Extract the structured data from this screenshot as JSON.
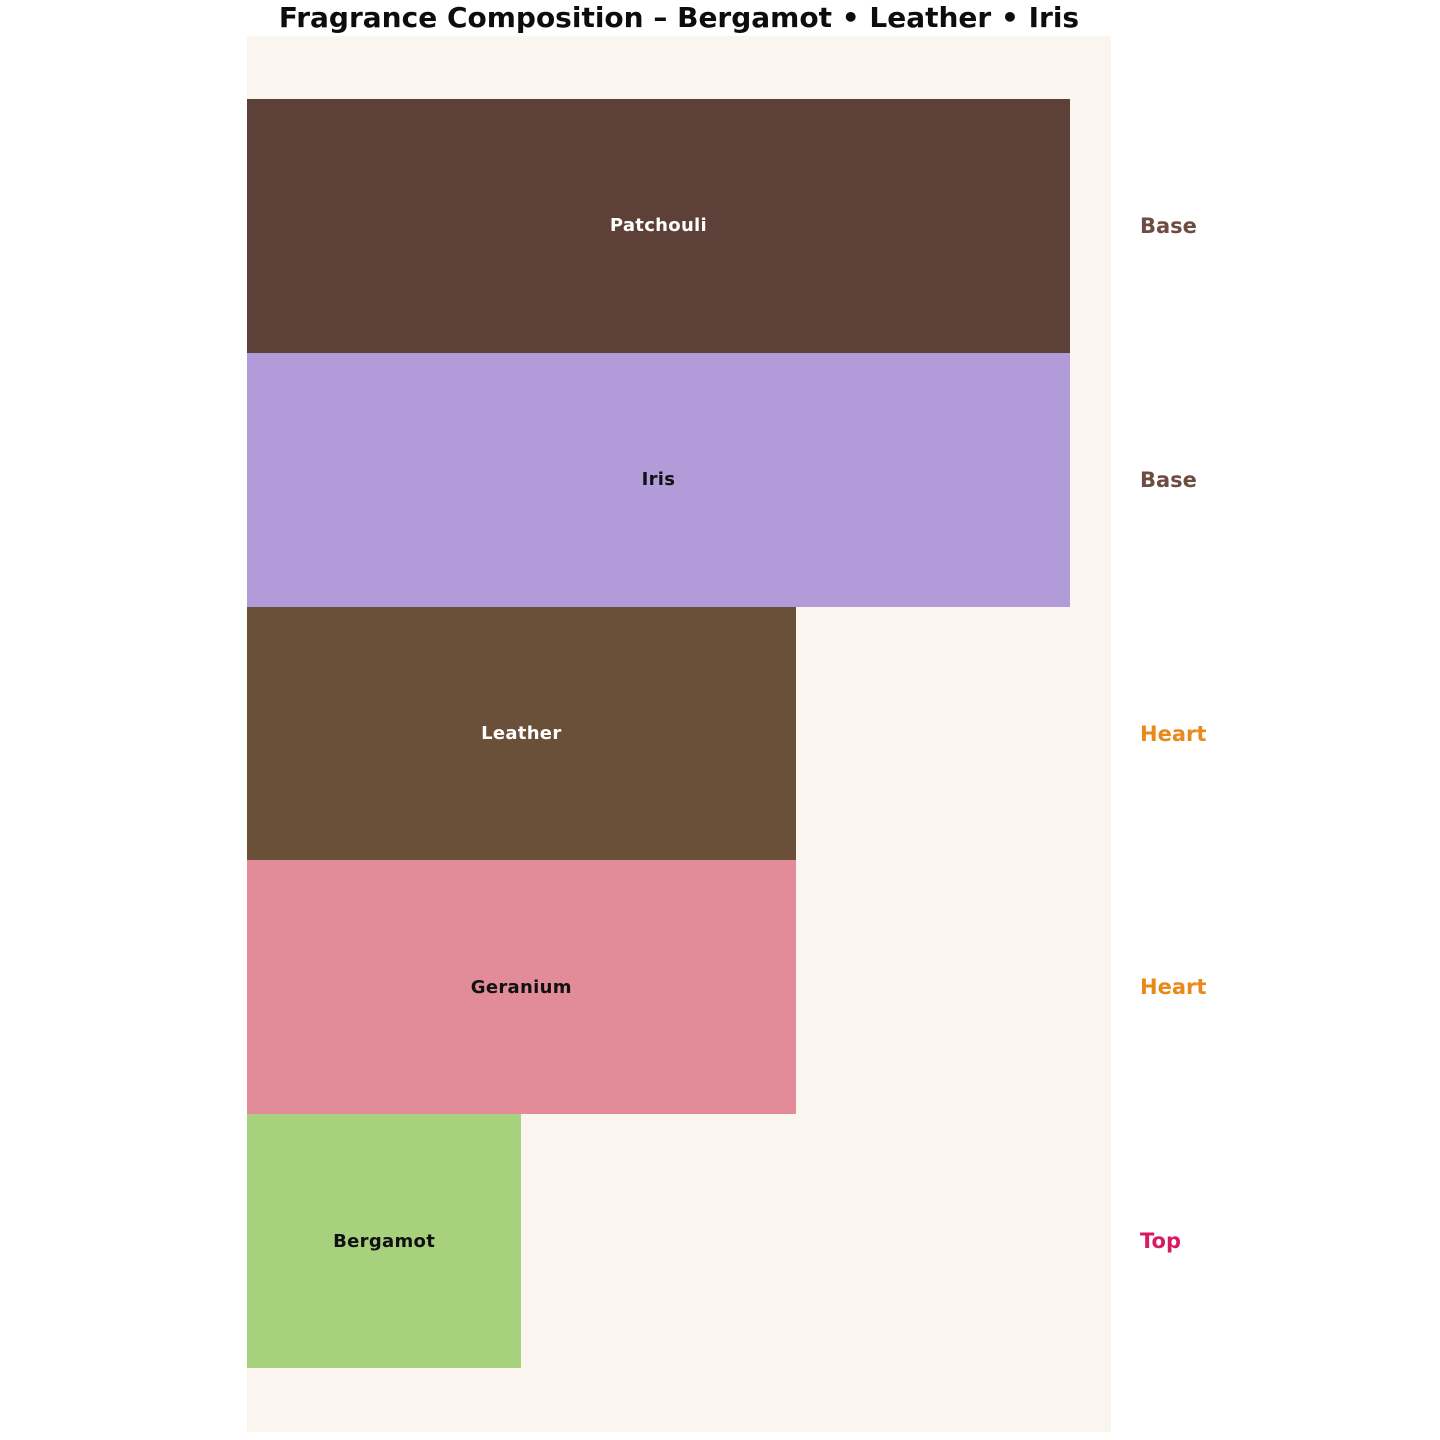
{
  "chart_data": {
    "type": "bar",
    "orientation": "horizontal",
    "title": "Fragrance Composition – Bergamot • Leather • Iris",
    "xlabel": "",
    "ylabel": "",
    "xlim": [
      0,
      31.5
    ],
    "axes_visible": false,
    "grid": false,
    "legend": "none",
    "plot_background": "#FAF5EE",
    "page_background": "#FFFFFF",
    "categories": [
      "Patchouli",
      "Iris",
      "Leather",
      "Geranium",
      "Bergamot"
    ],
    "values": [
      30,
      30,
      20,
      20,
      10
    ],
    "bars": [
      {
        "label": "Patchouli",
        "value": 30,
        "color": "#5D4037",
        "label_color": "#FFFFFF",
        "note": "Base",
        "note_color": "#6D4C41"
      },
      {
        "label": "Iris",
        "value": 30,
        "color": "#B19CD9",
        "label_color": "#111111",
        "note": "Base",
        "note_color": "#6D4C41"
      },
      {
        "label": "Leather",
        "value": 20,
        "color": "#6B5039",
        "label_color": "#FFFFFF",
        "note": "Heart",
        "note_color": "#E8891A"
      },
      {
        "label": "Geranium",
        "value": 20,
        "color": "#E28C9A",
        "label_color": "#111111",
        "note": "Heart",
        "note_color": "#E8891A"
      },
      {
        "label": "Bergamot",
        "value": 10,
        "color": "#A8D17E",
        "label_color": "#111111",
        "note": "Top",
        "note_color": "#D81B60"
      }
    ]
  }
}
